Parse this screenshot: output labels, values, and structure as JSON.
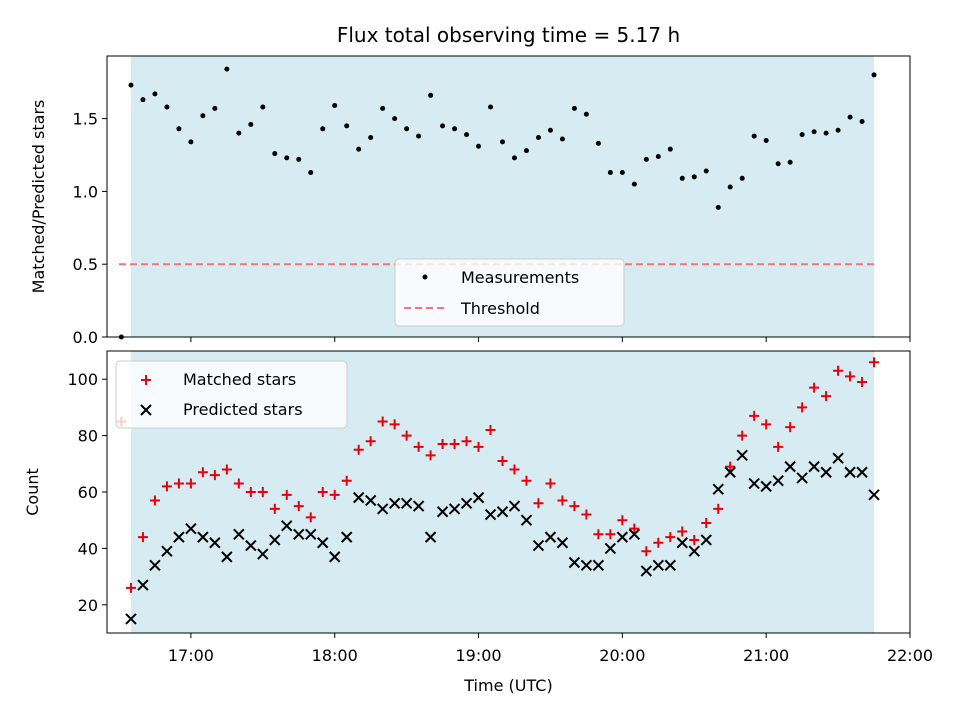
{
  "chart_data": [
    {
      "type": "scatter",
      "title": "Flux total observing time = 5.17 h",
      "xlabel": "",
      "ylabel": "Matched/Predicted stars",
      "xlim": [
        "16:25",
        "22:00"
      ],
      "ylim": [
        0,
        1.93
      ],
      "yticks": [
        "0.0",
        "0.5",
        "1.0",
        "1.5"
      ],
      "shaded_span": [
        "16:35",
        "21:45"
      ],
      "threshold": 0.5,
      "legend": {
        "position": "lower-center",
        "entries": [
          "Measurements",
          "Threshold"
        ]
      },
      "series": [
        {
          "name": "Measurements",
          "marker": "dot",
          "color": "#000000",
          "points": [
            [
              "16:31",
              0.0
            ],
            [
              "16:35",
              1.73
            ],
            [
              "16:40",
              1.63
            ],
            [
              "16:45",
              1.67
            ],
            [
              "16:50",
              1.58
            ],
            [
              "16:55",
              1.43
            ],
            [
              "17:00",
              1.34
            ],
            [
              "17:05",
              1.52
            ],
            [
              "17:10",
              1.57
            ],
            [
              "17:15",
              1.84
            ],
            [
              "17:20",
              1.4
            ],
            [
              "17:25",
              1.46
            ],
            [
              "17:30",
              1.58
            ],
            [
              "17:35",
              1.26
            ],
            [
              "17:40",
              1.23
            ],
            [
              "17:45",
              1.22
            ],
            [
              "17:50",
              1.13
            ],
            [
              "17:55",
              1.43
            ],
            [
              "18:00",
              1.59
            ],
            [
              "18:05",
              1.45
            ],
            [
              "18:10",
              1.29
            ],
            [
              "18:15",
              1.37
            ],
            [
              "18:20",
              1.57
            ],
            [
              "18:25",
              1.5
            ],
            [
              "18:30",
              1.43
            ],
            [
              "18:35",
              1.38
            ],
            [
              "18:40",
              1.66
            ],
            [
              "18:45",
              1.45
            ],
            [
              "18:50",
              1.43
            ],
            [
              "18:55",
              1.39
            ],
            [
              "19:00",
              1.31
            ],
            [
              "19:05",
              1.58
            ],
            [
              "19:10",
              1.34
            ],
            [
              "19:15",
              1.23
            ],
            [
              "19:20",
              1.28
            ],
            [
              "19:25",
              1.37
            ],
            [
              "19:30",
              1.42
            ],
            [
              "19:35",
              1.36
            ],
            [
              "19:40",
              1.57
            ],
            [
              "19:45",
              1.53
            ],
            [
              "19:50",
              1.33
            ],
            [
              "19:55",
              1.13
            ],
            [
              "20:00",
              1.13
            ],
            [
              "20:05",
              1.05
            ],
            [
              "20:10",
              1.22
            ],
            [
              "20:15",
              1.24
            ],
            [
              "20:20",
              1.29
            ],
            [
              "20:25",
              1.09
            ],
            [
              "20:30",
              1.1
            ],
            [
              "20:35",
              1.14
            ],
            [
              "20:40",
              0.89
            ],
            [
              "20:45",
              1.03
            ],
            [
              "20:50",
              1.09
            ],
            [
              "20:55",
              1.38
            ],
            [
              "21:00",
              1.35
            ],
            [
              "21:05",
              1.19
            ],
            [
              "21:10",
              1.2
            ],
            [
              "21:15",
              1.39
            ],
            [
              "21:20",
              1.41
            ],
            [
              "21:25",
              1.4
            ],
            [
              "21:30",
              1.42
            ],
            [
              "21:35",
              1.51
            ],
            [
              "21:40",
              1.48
            ],
            [
              "21:45",
              1.8
            ]
          ]
        },
        {
          "name": "Threshold",
          "style": "dashed",
          "color": "#f07878",
          "value": 0.5,
          "from": "16:30",
          "to": "21:45"
        }
      ]
    },
    {
      "type": "scatter",
      "title": "",
      "xlabel": "Time (UTC)",
      "ylabel": "Count",
      "xlim": [
        "16:25",
        "22:00"
      ],
      "ylim": [
        10,
        110
      ],
      "xticks": [
        "17:00",
        "18:00",
        "19:00",
        "20:00",
        "21:00",
        "22:00"
      ],
      "yticks": [
        "20",
        "40",
        "60",
        "80",
        "100"
      ],
      "shaded_span": [
        "16:35",
        "21:45"
      ],
      "legend": {
        "position": "top-left",
        "entries": [
          "Matched stars",
          "Predicted stars"
        ]
      },
      "times": [
        "16:35",
        "16:40",
        "16:45",
        "16:50",
        "16:55",
        "17:00",
        "17:05",
        "17:10",
        "17:15",
        "17:20",
        "17:25",
        "17:30",
        "17:35",
        "17:40",
        "17:45",
        "17:50",
        "17:55",
        "18:00",
        "18:05",
        "18:10",
        "18:15",
        "18:20",
        "18:25",
        "18:30",
        "18:35",
        "18:40",
        "18:45",
        "18:50",
        "18:55",
        "19:00",
        "19:05",
        "19:10",
        "19:15",
        "19:20",
        "19:25",
        "19:30",
        "19:35",
        "19:40",
        "19:45",
        "19:50",
        "19:55",
        "20:00",
        "20:05",
        "20:10",
        "20:15",
        "20:20",
        "20:25",
        "20:30",
        "20:35",
        "20:40",
        "20:45",
        "20:50",
        "20:55",
        "21:00",
        "21:05",
        "21:10",
        "21:15",
        "21:20",
        "21:25",
        "21:30",
        "21:35",
        "21:40",
        "21:45"
      ],
      "series": [
        {
          "name": "Matched stars",
          "marker": "plus",
          "color": "#e8000b",
          "values": [
            26,
            44,
            57,
            62,
            63,
            63,
            67,
            66,
            68,
            63,
            60,
            60,
            54,
            59,
            55,
            51,
            60,
            59,
            64,
            75,
            78,
            85,
            84,
            80,
            76,
            73,
            77,
            77,
            78,
            76,
            82,
            71,
            68,
            64,
            56,
            63,
            57,
            55,
            52,
            45,
            45,
            50,
            47,
            39,
            42,
            44,
            46,
            43,
            49,
            54,
            69,
            80,
            87,
            84,
            76,
            83,
            90,
            97,
            94,
            103,
            101,
            99,
            106
          ]
        },
        {
          "name": "Predicted stars",
          "marker": "x",
          "color": "#000000",
          "values": [
            15,
            27,
            34,
            39,
            44,
            47,
            44,
            42,
            37,
            45,
            41,
            38,
            43,
            48,
            45,
            45,
            42,
            37,
            44,
            58,
            57,
            54,
            56,
            56,
            55,
            44,
            53,
            54,
            56,
            58,
            52,
            53,
            55,
            50,
            41,
            44,
            42,
            35,
            34,
            34,
            40,
            44,
            45,
            32,
            34,
            34,
            42,
            39,
            43,
            61,
            67,
            73,
            63,
            62,
            64,
            69,
            65,
            69,
            67,
            72,
            67,
            67,
            59
          ]
        },
        {
          "name": "Matched stars (extra)",
          "marker": "plus",
          "color": "#e8000b",
          "points": [
            [
              "16:31",
              85
            ]
          ]
        }
      ]
    }
  ]
}
